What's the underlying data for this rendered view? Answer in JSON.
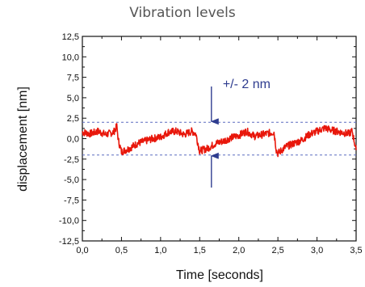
{
  "chart_data": {
    "type": "line",
    "title": "Vibration levels",
    "xlabel": "Time [seconds]",
    "ylabel": "displacement [nm]",
    "xlim": [
      0,
      3.5
    ],
    "ylim": [
      -12.5,
      12.5
    ],
    "x_ticks": [
      "0,0",
      "0,5",
      "1,0",
      "1,5",
      "2,0",
      "2,5",
      "3,0",
      "3,5"
    ],
    "x_tick_values": [
      0,
      0.5,
      1.0,
      1.5,
      2.0,
      2.5,
      3.0,
      3.5
    ],
    "y_ticks": [
      "12,5",
      "10,0",
      "7,5",
      "5,0",
      "2,5",
      "0,0",
      "-2,5",
      "-5,0",
      "-7,5",
      "-10,0",
      "-12,5"
    ],
    "y_tick_values": [
      12.5,
      10.0,
      7.5,
      5.0,
      2.5,
      0.0,
      -2.5,
      -5.0,
      -7.5,
      -10.0,
      -12.5
    ],
    "grid": false,
    "series": [
      {
        "color": "#e8170b",
        "x": [
          0.0,
          0.1,
          0.2,
          0.3,
          0.4,
          0.44,
          0.46,
          0.5,
          0.6,
          0.7,
          0.8,
          0.9,
          1.0,
          1.1,
          1.2,
          1.3,
          1.4,
          1.45,
          1.5,
          1.6,
          1.7,
          1.8,
          1.9,
          2.0,
          2.1,
          2.2,
          2.3,
          2.4,
          2.45,
          2.48,
          2.5,
          2.6,
          2.7,
          2.8,
          2.9,
          3.0,
          3.1,
          3.2,
          3.3,
          3.4,
          3.45,
          3.5
        ],
        "y": [
          0.8,
          0.6,
          0.9,
          0.5,
          0.8,
          1.5,
          -0.2,
          -1.6,
          -1.2,
          -0.6,
          -0.3,
          0.0,
          0.2,
          0.8,
          0.9,
          0.5,
          0.9,
          0.6,
          -1.5,
          -1.2,
          -0.6,
          -0.3,
          0.1,
          0.4,
          0.9,
          0.3,
          0.5,
          0.7,
          0.8,
          -1.4,
          -1.8,
          -1.0,
          -0.6,
          -0.2,
          0.5,
          0.9,
          1.3,
          1.0,
          0.8,
          0.6,
          0.9,
          -1.4
        ]
      }
    ],
    "reference_lines": [
      2.0,
      -2.0
    ],
    "annotation": "+/- 2 nm",
    "colors": {
      "signal": "#e8170b",
      "reference": "#5c6bc0",
      "annotation": "#2e3c8f",
      "title": "#555555"
    }
  }
}
